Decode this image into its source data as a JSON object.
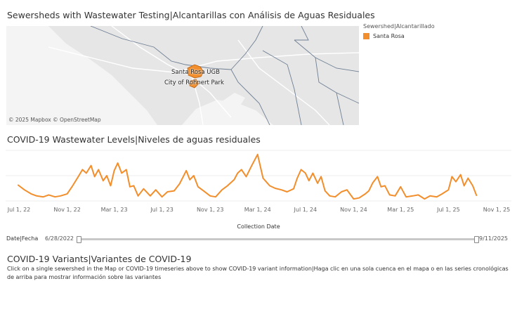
{
  "map_section": {
    "title": "Sewersheds with Wastewater Testing|Alcantarillas con Análisis de Aguas Residuales",
    "labels": {
      "santa_rosa": "Santa Rosa UGB",
      "rohnert_park": "City of Rohnert Park"
    },
    "attribution": "© 2025 Mapbox  © OpenStreetMap",
    "legend": {
      "title": "Sewershed|Alcantarillado",
      "item": "Santa Rosa",
      "color": "#f28e2b"
    }
  },
  "chart_section": {
    "title": "COVID-19 Wastewater Levels|Niveles de aguas residuales"
  },
  "chart_data": {
    "type": "line",
    "title": "COVID-19 Wastewater Levels|Niveles de aguas residuales",
    "xlabel": "Collection Date",
    "ylabel": "",
    "series_name": "Santa Rosa",
    "color": "#f28e2b",
    "x_ticks": [
      "Jul 1, 22",
      "Nov 1, 22",
      "Mar 1, 23",
      "Jul 1, 23",
      "Nov 1, 23",
      "Mar 1, 24",
      "Jul 1, 24",
      "Nov 1, 24",
      "Mar 1, 25",
      "Jul 1, 25",
      "Nov 1, 25"
    ],
    "xlim": [
      "Jul 1, 22",
      "Nov 1, 25"
    ],
    "ylim": [
      0,
      100
    ],
    "x": [
      "Jun 28, 22",
      "Jul 15, 22",
      "Aug 1, 22",
      "Aug 15, 22",
      "Sep 1, 22",
      "Sep 15, 22",
      "Oct 1, 22",
      "Oct 15, 22",
      "Nov 1, 22",
      "Nov 15, 22",
      "Dec 1, 22",
      "Dec 10, 22",
      "Dec 20, 22",
      "Jan 1, 23",
      "Jan 10, 23",
      "Jan 20, 23",
      "Feb 1, 23",
      "Feb 10, 23",
      "Feb 20, 23",
      "Mar 1, 23",
      "Mar 10, 23",
      "Mar 20, 23",
      "Apr 1, 23",
      "Apr 10, 23",
      "Apr 20, 23",
      "May 1, 23",
      "May 15, 23",
      "Jun 1, 23",
      "Jun 15, 23",
      "Jul 1, 23",
      "Jul 15, 23",
      "Aug 1, 23",
      "Aug 15, 23",
      "Sep 1, 23",
      "Sep 10, 23",
      "Sep 20, 23",
      "Oct 1, 23",
      "Oct 15, 23",
      "Nov 1, 23",
      "Nov 15, 23",
      "Dec 1, 23",
      "Dec 15, 23",
      "Jan 1, 24",
      "Jan 10, 24",
      "Jan 20, 24",
      "Feb 1, 24",
      "Feb 15, 24",
      "Mar 1, 24",
      "Mar 15, 24",
      "Apr 1, 24",
      "Apr 15, 24",
      "May 1, 24",
      "May 15, 24",
      "Jun 1, 24",
      "Jun 10, 24",
      "Jun 20, 24",
      "Jul 1, 24",
      "Jul 10, 24",
      "Jul 20, 24",
      "Aug 1, 24",
      "Aug 10, 24",
      "Aug 20, 24",
      "Sep 1, 24",
      "Sep 15, 24",
      "Oct 1, 24",
      "Oct 15, 24",
      "Nov 1, 24",
      "Nov 15, 24",
      "Dec 1, 24",
      "Dec 10, 24",
      "Dec 20, 24",
      "Jan 1, 25",
      "Jan 10, 25",
      "Jan 20, 25",
      "Feb 1, 25",
      "Feb 15, 25",
      "Mar 1, 25",
      "Mar 15, 25",
      "Apr 1, 25",
      "Apr 15, 25",
      "May 1, 25",
      "May 15, 25",
      "Jun 1, 25",
      "Jun 15, 25",
      "Jul 1, 25",
      "Jul 10, 25",
      "Jul 20, 25",
      "Aug 1, 25",
      "Aug 10, 25",
      "Aug 20, 25",
      "Sep 1, 25",
      "Sep 11, 25"
    ],
    "values": [
      32,
      22,
      14,
      10,
      8,
      12,
      8,
      10,
      14,
      30,
      50,
      62,
      55,
      70,
      48,
      62,
      40,
      50,
      30,
      60,
      75,
      55,
      62,
      28,
      30,
      10,
      24,
      10,
      22,
      8,
      18,
      20,
      34,
      60,
      42,
      50,
      28,
      20,
      10,
      8,
      22,
      30,
      42,
      55,
      62,
      48,
      70,
      92,
      45,
      30,
      25,
      22,
      18,
      24,
      45,
      62,
      55,
      40,
      55,
      35,
      48,
      20,
      10,
      8,
      18,
      22,
      4,
      6,
      14,
      20,
      36,
      48,
      28,
      30,
      12,
      10,
      28,
      8,
      10,
      12,
      4,
      10,
      8,
      14,
      22,
      48,
      38,
      52,
      30,
      45,
      30,
      10
    ]
  },
  "filter": {
    "label": "Date|Fecha",
    "start": "6/28/2022",
    "end": "9/11/2025"
  },
  "variants_section": {
    "title": "COVID-19 Variants|Variantes de COVID-19",
    "description": "Click on a single sewershed in the Map or COVID-19 timeseries above to show COVID-19 variant information|Haga clic en una sola cuenca en el mapa o en las series cronológicas de arriba para mostrar información sobre las variantes"
  }
}
